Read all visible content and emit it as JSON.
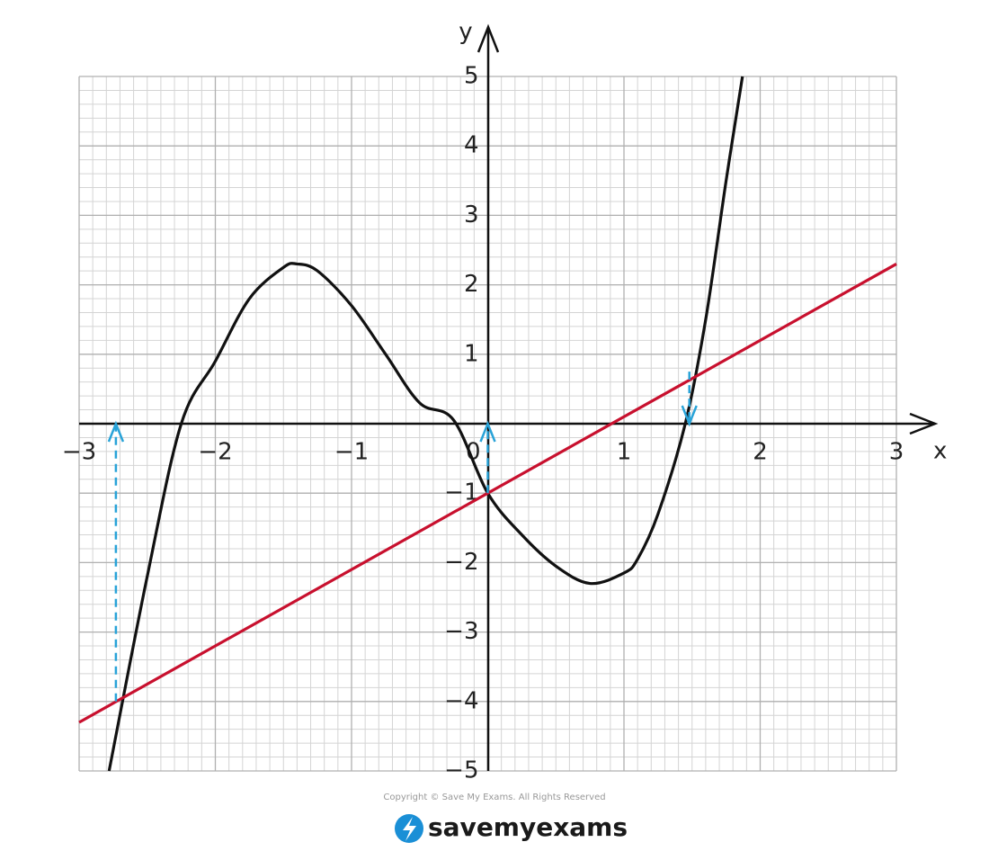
{
  "chart_data": {
    "type": "line",
    "x_label": "x",
    "y_label": "y",
    "xlim": [
      -3,
      3
    ],
    "ylim": [
      -5,
      5
    ],
    "xticks": [
      {
        "value": -3,
        "label": "−3"
      },
      {
        "value": -2,
        "label": "−2"
      },
      {
        "value": -1,
        "label": "−1"
      },
      0,
      1,
      2,
      3
    ],
    "yticks": [
      {
        "value": -5,
        "label": "−5"
      },
      {
        "value": -4,
        "label": "−4"
      },
      {
        "value": -3,
        "label": "−3"
      },
      {
        "value": -2,
        "label": "−2"
      },
      {
        "value": -1,
        "label": "−1"
      },
      1,
      2,
      3,
      4,
      5
    ],
    "grid": true,
    "series": [
      {
        "color": "#111111",
        "x": [
          -2.78,
          -2.5,
          -2.25,
          -2,
          -1.75,
          -1.5,
          -1.4,
          -1.25,
          -1,
          -0.75,
          -0.5,
          -0.25,
          0,
          0.25,
          0.5,
          0.75,
          1,
          1.1,
          1.25,
          1.45,
          1.6,
          1.75,
          1.87
        ],
        "values": [
          -5,
          -2.2,
          0,
          0.9,
          1.8,
          2.25,
          2.3,
          2.2,
          1.7,
          1.0,
          0.3,
          0.05,
          -1,
          -1.6,
          -2.05,
          -2.3,
          -2.15,
          -1.95,
          -1.3,
          0,
          1.5,
          3.5,
          5
        ]
      },
      {
        "color": "#c8102e",
        "x": [
          -3,
          3
        ],
        "values": [
          -4.3,
          2.3
        ]
      }
    ],
    "arrows": [
      {
        "x": -2.73,
        "from": -4,
        "to": 0,
        "color": "#29a3d8"
      },
      {
        "x": 0,
        "from": -1,
        "to": 0,
        "color": "#29a3d8"
      },
      {
        "x": 1.48,
        "from": 0.75,
        "to": 0,
        "color": "#29a3d8"
      }
    ]
  },
  "copyright": "Copyright © Save My Exams. All Rights Reserved",
  "brand": "savemyexams"
}
